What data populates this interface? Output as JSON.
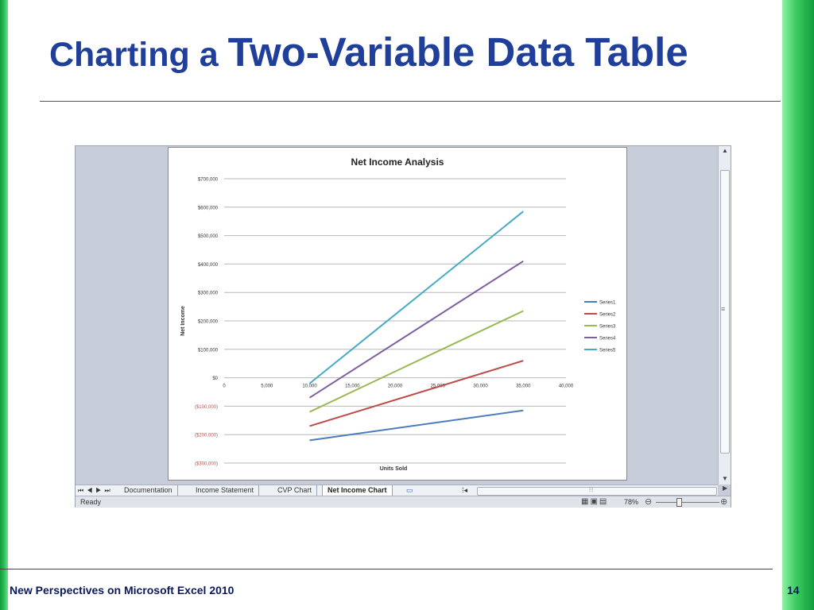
{
  "slide": {
    "title_small": "Charting a ",
    "title_large": "Two-Variable Data Table",
    "footer": "New Perspectives on Microsoft Excel 2010",
    "page_number": "14"
  },
  "excel": {
    "sheet_tabs": [
      "Documentation",
      "Income Statement",
      "CVP Chart",
      "Net Income Chart"
    ],
    "active_tab": "Net Income Chart",
    "status": "Ready",
    "zoom": "78%"
  },
  "chart_data": {
    "type": "line",
    "title": "Net Income Analysis",
    "xlabel": "Units Sold",
    "ylabel": "Net Income",
    "xlim": [
      0,
      40000
    ],
    "ylim": [
      -300000,
      700000
    ],
    "x_tick_labels": [
      "0",
      "5,000",
      "10,000",
      "15,000",
      "20,000",
      "25,000",
      "30,000",
      "35,000",
      "40,000"
    ],
    "y_tick_labels": [
      "$700,000",
      "$600,000",
      "$500,000",
      "$400,000",
      "$300,000",
      "$200,000",
      "$100,000",
      "$0",
      "($100,000)",
      "($200,000)",
      "($300,000)"
    ],
    "grid": "horizontal",
    "legend_position": "right",
    "series": [
      {
        "name": "Series1",
        "color": "#4a7ebb",
        "x": [
          10000,
          35000
        ],
        "y": [
          -220000,
          -115000
        ]
      },
      {
        "name": "Series2",
        "color": "#be4b48",
        "x": [
          10000,
          35000
        ],
        "y": [
          -170000,
          60000
        ]
      },
      {
        "name": "Series3",
        "color": "#98b954",
        "x": [
          10000,
          35000
        ],
        "y": [
          -120000,
          235000
        ]
      },
      {
        "name": "Series4",
        "color": "#7d5fa0",
        "x": [
          10000,
          35000
        ],
        "y": [
          -70000,
          410000
        ]
      },
      {
        "name": "Series5",
        "color": "#46aac5",
        "x": [
          10000,
          35000
        ],
        "y": [
          -20000,
          585000
        ]
      }
    ]
  }
}
